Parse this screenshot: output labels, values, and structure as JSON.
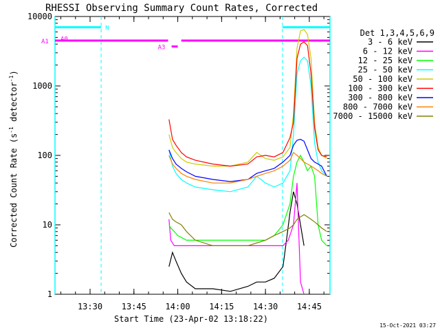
{
  "chart_data": {
    "type": "line",
    "title": "RHESSI Observing Summary Count Rates, Corrected",
    "xlabel": "Start Time (23-Apr-02 13:18:22)",
    "ylabel": "Corrected Count Rate (s⁻¹ detector⁻¹)",
    "ylabel_plain": "Corrected Count Rate (s",
    "ylabel_sup1": "-1",
    "ylabel_mid": " detector",
    "ylabel_sup2": "-1",
    "ylabel_end": ")",
    "yscale": "log",
    "ylim": [
      1,
      10000
    ],
    "xlim_minutes": [
      13.3,
      14.868
    ],
    "x_ticks": [
      {
        "label": "13:30",
        "t": 13.5
      },
      {
        "label": "13:45",
        "t": 13.75
      },
      {
        "label": "14:00",
        "t": 14.0
      },
      {
        "label": "14:15",
        "t": 14.25
      },
      {
        "label": "14:30",
        "t": 14.5
      },
      {
        "label": "14:45",
        "t": 14.75
      }
    ],
    "y_ticks": [
      {
        "label": "1",
        "v": 1
      },
      {
        "label": "10",
        "v": 10
      },
      {
        "label": "100",
        "v": 100
      },
      {
        "label": "1000",
        "v": 1000
      },
      {
        "label": "10000",
        "v": 10000
      }
    ],
    "legend_title": "Det 1,3,4,5,6,9",
    "grid": false,
    "legend_position": "right",
    "series": [
      {
        "name": "3 - 6 keV",
        "color": "#000000",
        "x": [
          13.95,
          13.97,
          13.99,
          14.02,
          14.05,
          14.1,
          14.2,
          14.3,
          14.4,
          14.45,
          14.5,
          14.55,
          14.6,
          14.62,
          14.64,
          14.66,
          14.68,
          14.7,
          14.72
        ],
        "y": [
          2.5,
          4,
          3,
          2,
          1.5,
          1.2,
          1.2,
          1.1,
          1.3,
          1.5,
          1.5,
          1.7,
          2.5,
          6,
          15,
          30,
          20,
          10,
          5
        ]
      },
      {
        "name": "6 - 12 keV",
        "color": "#ff00ff",
        "x": [
          13.95,
          13.96,
          13.98,
          14.0,
          14.1,
          14.2,
          14.3,
          14.4,
          14.5,
          14.55,
          14.6,
          14.63,
          14.66,
          14.68,
          14.7,
          14.72
        ],
        "y": [
          12,
          6,
          5,
          5,
          5,
          5,
          5,
          5,
          5,
          5,
          5,
          6,
          10,
          40,
          1.5,
          1
        ]
      },
      {
        "name": "12 - 25 keV",
        "color": "#00ff00",
        "x": [
          13.95,
          13.96,
          13.98,
          14.0,
          14.05,
          14.1,
          14.2,
          14.3,
          14.4,
          14.5,
          14.55,
          14.6,
          14.64,
          14.66,
          14.68,
          14.7,
          14.72,
          14.74,
          14.76,
          14.78,
          14.8,
          14.82,
          14.85
        ],
        "y": [
          10,
          9,
          8,
          7,
          6,
          6,
          6,
          6,
          6,
          6,
          7,
          10,
          20,
          50,
          80,
          100,
          80,
          60,
          70,
          50,
          10,
          6,
          5
        ]
      },
      {
        "name": "25 - 50 keV",
        "color": "#00ffff",
        "x": [
          13.95,
          13.97,
          13.99,
          14.02,
          14.05,
          14.1,
          14.2,
          14.3,
          14.4,
          14.45,
          14.5,
          14.55,
          14.6,
          14.64,
          14.66,
          14.68,
          14.7,
          14.72,
          14.74,
          14.76,
          14.78,
          14.8,
          14.82,
          14.85
        ],
        "y": [
          120,
          70,
          55,
          45,
          40,
          35,
          32,
          30,
          35,
          50,
          40,
          35,
          40,
          60,
          200,
          1500,
          2300,
          2600,
          2300,
          1000,
          150,
          80,
          60,
          50
        ]
      },
      {
        "name": "50 - 100 keV",
        "color": "#cccc00",
        "x": [
          13.95,
          13.97,
          13.99,
          14.02,
          14.05,
          14.1,
          14.2,
          14.3,
          14.4,
          14.45,
          14.5,
          14.55,
          14.6,
          14.64,
          14.66,
          14.68,
          14.7,
          14.72,
          14.74,
          14.76,
          14.78,
          14.8,
          14.82,
          14.85
        ],
        "y": [
          200,
          130,
          110,
          90,
          80,
          75,
          70,
          70,
          80,
          110,
          90,
          85,
          95,
          130,
          400,
          3500,
          6200,
          6500,
          5500,
          2500,
          300,
          130,
          100,
          90
        ]
      },
      {
        "name": "100 - 300 keV",
        "color": "#ff0000",
        "x": [
          13.95,
          13.97,
          13.99,
          14.02,
          14.05,
          14.1,
          14.2,
          14.3,
          14.4,
          14.45,
          14.5,
          14.55,
          14.6,
          14.64,
          14.66,
          14.68,
          14.7,
          14.72,
          14.74,
          14.76,
          14.78,
          14.8,
          14.82,
          14.85
        ],
        "y": [
          330,
          170,
          140,
          110,
          95,
          85,
          75,
          70,
          75,
          95,
          100,
          95,
          110,
          180,
          300,
          2500,
          4000,
          4300,
          3800,
          1500,
          250,
          120,
          100,
          95
        ]
      },
      {
        "name": "300 - 800 keV",
        "color": "#0000ff",
        "x": [
          13.95,
          13.97,
          13.99,
          14.02,
          14.05,
          14.1,
          14.2,
          14.3,
          14.4,
          14.45,
          14.5,
          14.55,
          14.6,
          14.64,
          14.66,
          14.68,
          14.7,
          14.72,
          14.74,
          14.76,
          14.78,
          14.8,
          14.82,
          14.85
        ],
        "y": [
          120,
          90,
          75,
          65,
          58,
          50,
          45,
          42,
          45,
          55,
          60,
          65,
          80,
          100,
          140,
          165,
          170,
          160,
          120,
          90,
          80,
          75,
          70,
          50
        ]
      },
      {
        "name": "800 - 7000 keV",
        "color": "#ff8000",
        "x": [
          13.95,
          13.97,
          13.99,
          14.02,
          14.05,
          14.1,
          14.2,
          14.3,
          14.4,
          14.45,
          14.5,
          14.55,
          14.6,
          14.64,
          14.66,
          14.68,
          14.7,
          14.72,
          14.74,
          14.76,
          14.78,
          14.8,
          14.82,
          14.85
        ],
        "y": [
          100,
          75,
          65,
          55,
          50,
          45,
          40,
          40,
          45,
          50,
          55,
          60,
          70,
          85,
          110,
          100,
          90,
          80,
          75,
          70,
          65,
          60,
          55,
          50
        ]
      },
      {
        "name": "7000 - 15000 keV",
        "color": "#808000",
        "x": [
          13.95,
          13.97,
          13.99,
          14.02,
          14.05,
          14.1,
          14.2,
          14.3,
          14.4,
          14.5,
          14.55,
          14.6,
          14.64,
          14.66,
          14.68,
          14.7,
          14.72,
          14.74,
          14.76,
          14.78,
          14.8,
          14.82,
          14.85
        ],
        "y": [
          15,
          12,
          11,
          10,
          8,
          6,
          5,
          5,
          5,
          6,
          7,
          8,
          9,
          10,
          12,
          13,
          14,
          13,
          12,
          11,
          10,
          9,
          8
        ]
      }
    ],
    "attenuator_states": [
      {
        "label": "A0",
        "color": "#ff00ff",
        "start": 13.3,
        "end": 13.3,
        "level": 7000
      },
      {
        "label": "A1",
        "color": "#ff00ff",
        "start": 13.3,
        "end": 13.945,
        "level": 4500
      },
      {
        "label": "A3",
        "color": "#ff00ff",
        "start": 13.965,
        "end": 14.0,
        "level": 3700
      },
      {
        "label": "",
        "color": "#ff00ff",
        "start": 14.02,
        "end": 14.868,
        "level": 4500
      }
    ],
    "night_intervals": [
      {
        "label": "N",
        "color": "#00ffff",
        "start": 13.3,
        "end": 13.563,
        "level": 7000
      },
      {
        "label": "",
        "color": "#00ffff",
        "start": 14.597,
        "end": 14.868,
        "level": 7000
      }
    ],
    "timestamp": "15-Oct-2021 03:27"
  }
}
